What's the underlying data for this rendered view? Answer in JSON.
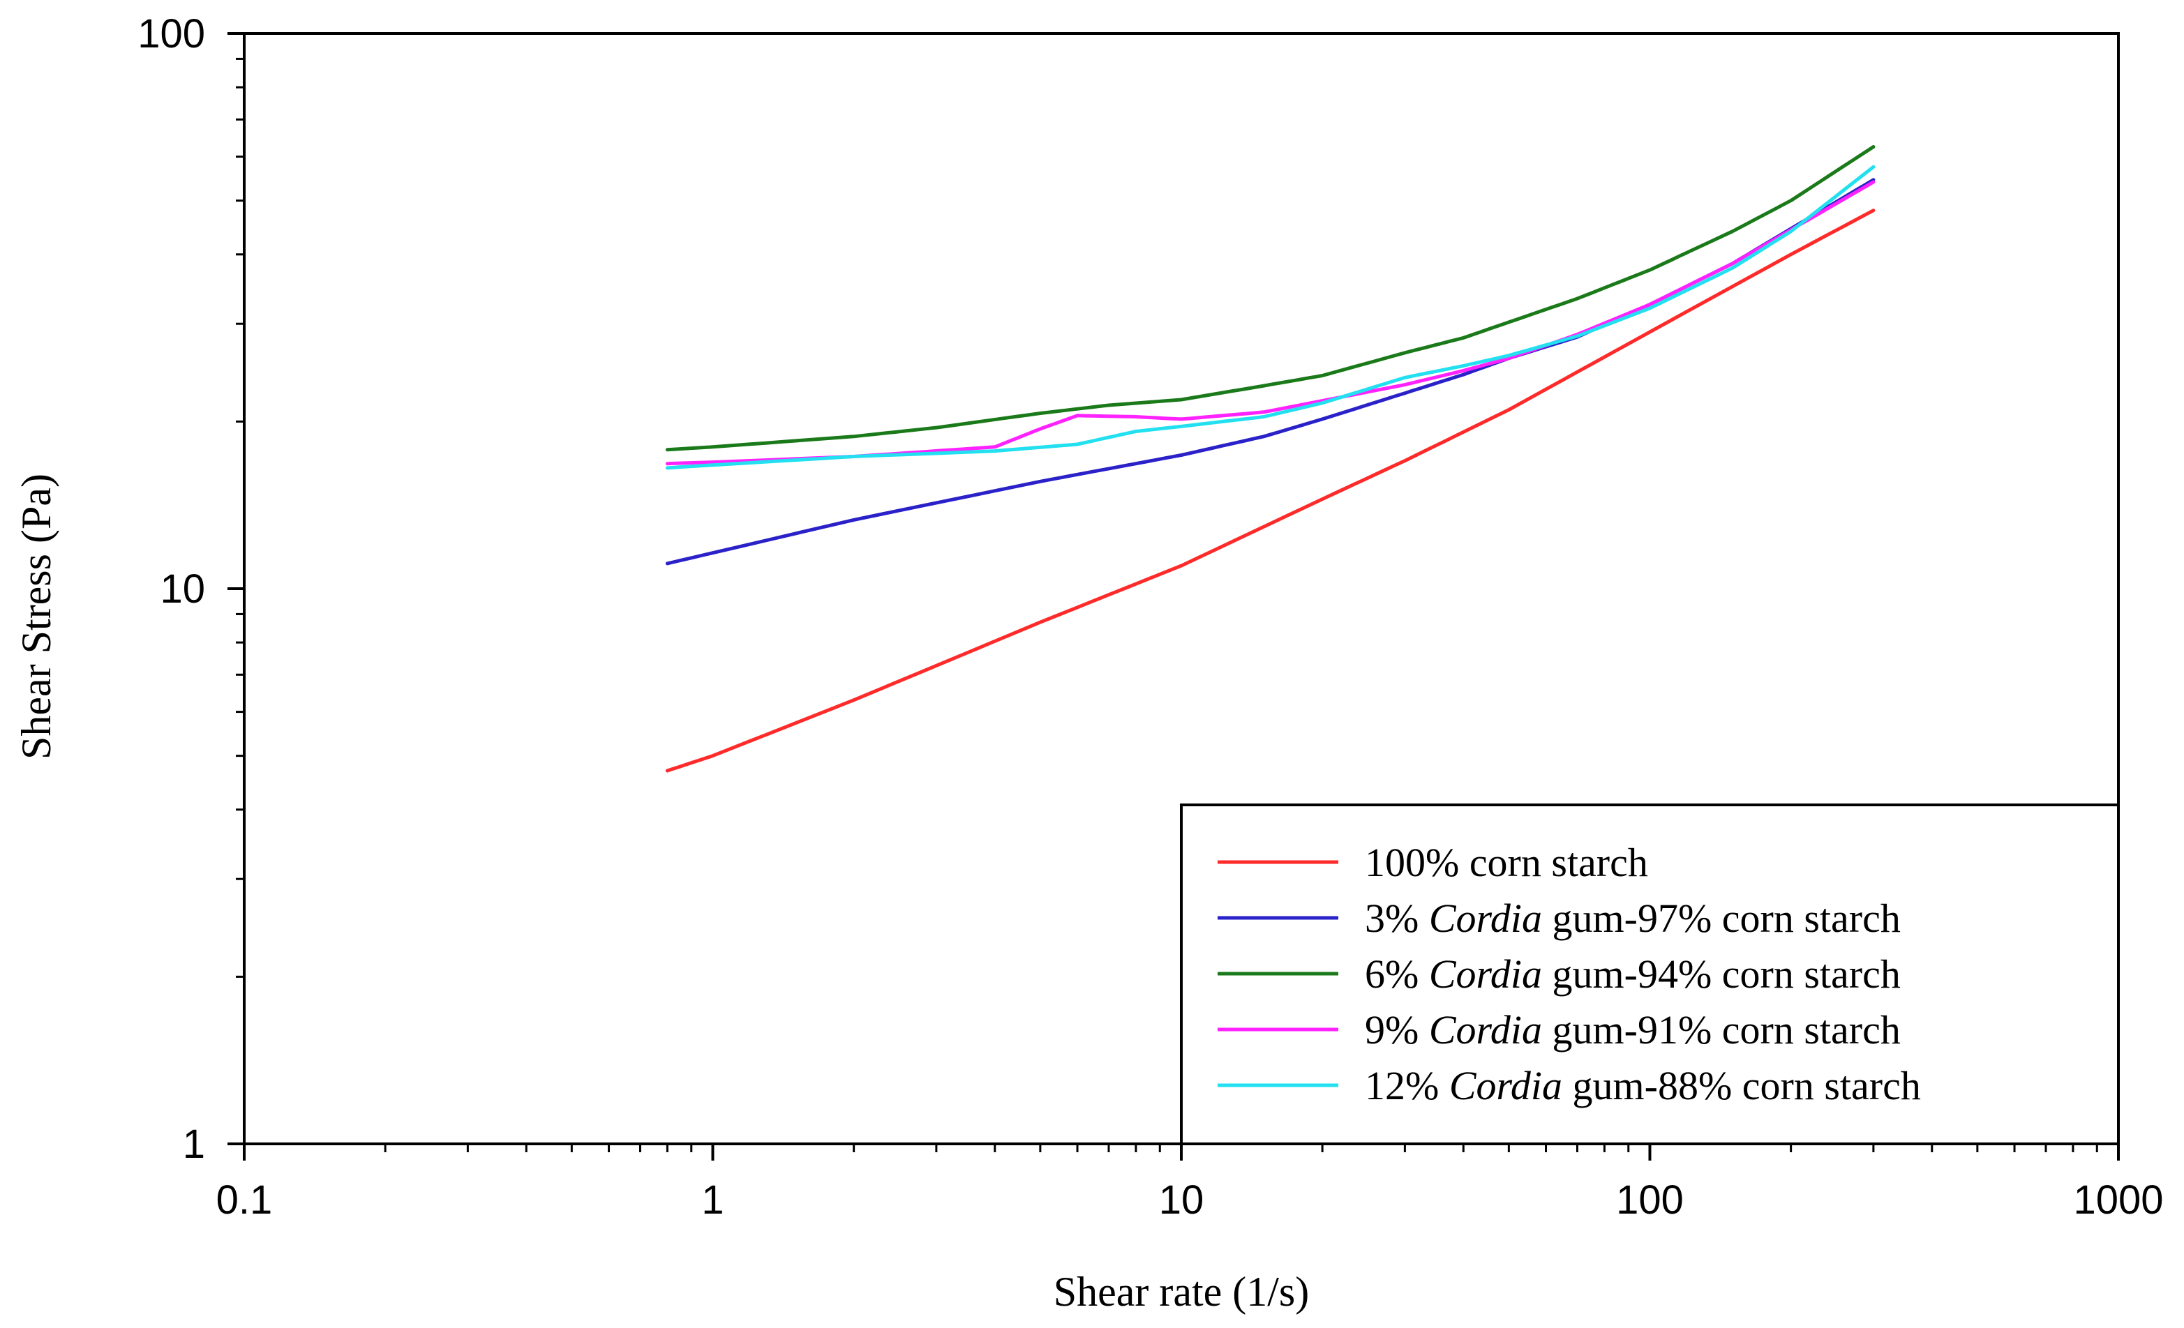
{
  "chart_data": {
    "type": "line",
    "xlabel": "Shear rate (1/s)",
    "ylabel": "Shear Stress (Pa)",
    "x_scale": "log",
    "y_scale": "log",
    "xlim": [
      0.1,
      1000
    ],
    "ylim": [
      1,
      100
    ],
    "x_ticks": [
      "0.1",
      "1",
      "10",
      "100",
      "1000"
    ],
    "y_ticks": [
      "1",
      "10",
      "100"
    ],
    "grid": false,
    "legend_position": "bottom-right",
    "series": [
      {
        "name": "100% corn starch",
        "legend_parts": [
          {
            "text": "100% corn starch",
            "italic": false
          }
        ],
        "color": "#ff2a2a",
        "points": [
          [
            0.8,
            4.7
          ],
          [
            1,
            5.0
          ],
          [
            2,
            6.3
          ],
          [
            5,
            8.7
          ],
          [
            10,
            11.0
          ],
          [
            20,
            14.5
          ],
          [
            30,
            17.0
          ],
          [
            50,
            21.0
          ],
          [
            100,
            29.0
          ],
          [
            200,
            40.0
          ],
          [
            300,
            48.0
          ]
        ]
      },
      {
        "name": "3% Cordia gum-97% corn starch",
        "legend_parts": [
          {
            "text": "3% ",
            "italic": false
          },
          {
            "text": "Cordia",
            "italic": true
          },
          {
            "text": " gum-97% corn starch",
            "italic": false
          }
        ],
        "color": "#2a22c8",
        "points": [
          [
            0.8,
            11.1
          ],
          [
            1,
            11.6
          ],
          [
            2,
            13.3
          ],
          [
            5,
            15.6
          ],
          [
            10,
            17.4
          ],
          [
            15,
            18.8
          ],
          [
            20,
            20.2
          ],
          [
            30,
            22.5
          ],
          [
            40,
            24.3
          ],
          [
            50,
            26.0
          ],
          [
            70,
            28.4
          ],
          [
            100,
            32.5
          ],
          [
            150,
            38.5
          ],
          [
            200,
            44.5
          ],
          [
            300,
            54.5
          ]
        ]
      },
      {
        "name": "6% Cordia gum-94% corn starch",
        "legend_parts": [
          {
            "text": "6% ",
            "italic": false
          },
          {
            "text": "Cordia",
            "italic": true
          },
          {
            "text": " gum-94% corn starch",
            "italic": false
          }
        ],
        "color": "#1a7a1a",
        "points": [
          [
            0.8,
            17.8
          ],
          [
            1,
            18.0
          ],
          [
            2,
            18.8
          ],
          [
            3,
            19.5
          ],
          [
            5,
            20.7
          ],
          [
            7,
            21.4
          ],
          [
            10,
            21.9
          ],
          [
            15,
            23.2
          ],
          [
            20,
            24.2
          ],
          [
            30,
            26.6
          ],
          [
            40,
            28.3
          ],
          [
            50,
            30.2
          ],
          [
            70,
            33.3
          ],
          [
            100,
            37.5
          ],
          [
            150,
            44.0
          ],
          [
            200,
            50.0
          ],
          [
            300,
            62.5
          ]
        ]
      },
      {
        "name": "9% Cordia gum-91% corn starch",
        "legend_parts": [
          {
            "text": "9% ",
            "italic": false
          },
          {
            "text": "Cordia",
            "italic": true
          },
          {
            "text": " gum-91% corn starch",
            "italic": false
          }
        ],
        "color": "#ff22ff",
        "points": [
          [
            0.8,
            16.8
          ],
          [
            1,
            16.9
          ],
          [
            2,
            17.3
          ],
          [
            4,
            18.0
          ],
          [
            5,
            19.4
          ],
          [
            6,
            20.5
          ],
          [
            8,
            20.4
          ],
          [
            10,
            20.2
          ],
          [
            15,
            20.8
          ],
          [
            20,
            21.8
          ],
          [
            30,
            23.3
          ],
          [
            40,
            24.7
          ],
          [
            50,
            26.0
          ],
          [
            70,
            28.7
          ],
          [
            100,
            32.5
          ],
          [
            150,
            38.5
          ],
          [
            200,
            44.3
          ],
          [
            300,
            54.0
          ]
        ]
      },
      {
        "name": "12% Cordia gum-88% corn starch",
        "legend_parts": [
          {
            "text": "12% ",
            "italic": false
          },
          {
            "text": "Cordia",
            "italic": true
          },
          {
            "text": " gum-88% corn starch",
            "italic": false
          }
        ],
        "color": "#22e0f0",
        "points": [
          [
            0.8,
            16.5
          ],
          [
            1,
            16.7
          ],
          [
            2,
            17.3
          ],
          [
            4,
            17.7
          ],
          [
            6,
            18.2
          ],
          [
            8,
            19.2
          ],
          [
            10,
            19.6
          ],
          [
            15,
            20.4
          ],
          [
            20,
            21.6
          ],
          [
            30,
            24.0
          ],
          [
            40,
            25.2
          ],
          [
            50,
            26.3
          ],
          [
            70,
            28.5
          ],
          [
            100,
            32.0
          ],
          [
            150,
            37.8
          ],
          [
            200,
            44.0
          ],
          [
            300,
            57.5
          ]
        ]
      }
    ]
  }
}
